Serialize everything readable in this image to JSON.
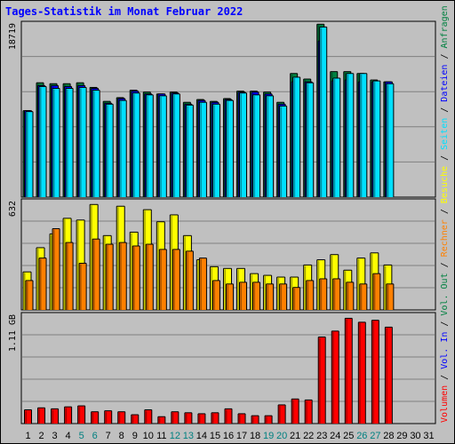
{
  "chart_title": "Tages-Statistik im Monat Februar 2022",
  "colors": {
    "background": "#c0c0c0",
    "title": "#0000ff",
    "anfragen": "#008040",
    "dateien": "#0000ff",
    "seiten": "#00e0ff",
    "besuche": "#ffff00",
    "rechner": "#ff8000",
    "vol_in": "#0000ff",
    "vol_out": "#008040",
    "volumen": "#ff0000",
    "weekend_tick": "#008080",
    "default_tick": "#000000"
  },
  "right_legend": [
    {
      "text": "Anfragen",
      "color_key": "anfragen"
    },
    {
      "text": "Dateien",
      "color_key": "dateien"
    },
    {
      "text": "Seiten",
      "color_key": "seiten"
    },
    {
      "text": "Besuche",
      "color_key": "besuche"
    },
    {
      "text": "Rechner",
      "color_key": "rechner"
    },
    {
      "text": "Vol. Out",
      "color_key": "vol_out"
    },
    {
      "text": "Vol. In",
      "color_key": "vol_in"
    },
    {
      "text": "Volumen",
      "color_key": "volumen"
    }
  ],
  "chart_data": [
    {
      "type": "bar",
      "title": "Tages-Statistik im Monat Februar 2022",
      "panel": "top",
      "ylabel": "18719",
      "ylim": [
        0,
        18719
      ],
      "categories": [
        "1",
        "2",
        "3",
        "4",
        "5",
        "6",
        "7",
        "8",
        "9",
        "10",
        "11",
        "12",
        "13",
        "14",
        "15",
        "16",
        "17",
        "18",
        "19",
        "20",
        "21",
        "22",
        "23",
        "24",
        "25",
        "26",
        "27",
        "28",
        "29",
        "30",
        "31"
      ],
      "series": [
        {
          "name": "Anfragen",
          "values": [
            9300,
            12300,
            12200,
            12200,
            12300,
            11800,
            10300,
            10700,
            11500,
            11300,
            11100,
            11300,
            10200,
            10500,
            10300,
            10600,
            11400,
            11400,
            11300,
            10200,
            13300,
            12700,
            18600,
            13500,
            13500,
            13300,
            12600,
            12400,
            null,
            null,
            null
          ]
        },
        {
          "name": "Dateien",
          "values": [
            9300,
            12000,
            12000,
            11900,
            12000,
            11700,
            10100,
            10600,
            11400,
            11100,
            11100,
            11200,
            10000,
            10400,
            10200,
            10500,
            11300,
            11300,
            11100,
            10000,
            12400,
            12400,
            16800,
            12500,
            12600,
            12400,
            12400,
            12400,
            null,
            null,
            null
          ]
        },
        {
          "name": "Seiten",
          "values": [
            9200,
            11900,
            11700,
            11700,
            11800,
            11500,
            10000,
            10400,
            11200,
            11000,
            10900,
            11100,
            9900,
            10200,
            10000,
            10400,
            11200,
            11000,
            10900,
            9800,
            12900,
            12300,
            18300,
            12800,
            13300,
            13300,
            12500,
            12200,
            null,
            null,
            null
          ]
        }
      ]
    },
    {
      "type": "bar",
      "panel": "middle",
      "ylabel": "632",
      "ylim": [
        0,
        632
      ],
      "categories": [
        "1",
        "2",
        "3",
        "4",
        "5",
        "6",
        "7",
        "8",
        "9",
        "10",
        "11",
        "12",
        "13",
        "14",
        "15",
        "16",
        "17",
        "18",
        "19",
        "20",
        "21",
        "22",
        "23",
        "24",
        "25",
        "26",
        "27",
        "28",
        "29",
        "30",
        "31"
      ],
      "series": [
        {
          "name": "Besuche",
          "values": [
            220,
            360,
            440,
            530,
            520,
            610,
            430,
            600,
            450,
            580,
            510,
            550,
            430,
            290,
            250,
            240,
            240,
            210,
            200,
            190,
            190,
            260,
            290,
            320,
            230,
            300,
            330,
            260,
            null,
            null,
            null
          ]
        },
        {
          "name": "Rechner",
          "values": [
            170,
            300,
            470,
            390,
            270,
            410,
            380,
            390,
            370,
            380,
            350,
            350,
            340,
            300,
            170,
            150,
            160,
            160,
            150,
            150,
            130,
            170,
            180,
            180,
            160,
            150,
            210,
            150,
            null,
            null,
            null
          ]
        }
      ]
    },
    {
      "type": "bar",
      "panel": "bottom",
      "ylabel": "1.11 GB",
      "categories": [
        "1",
        "2",
        "3",
        "4",
        "5",
        "6",
        "7",
        "8",
        "9",
        "10",
        "11",
        "12",
        "13",
        "14",
        "15",
        "16",
        "17",
        "18",
        "19",
        "20",
        "21",
        "22",
        "23",
        "24",
        "25",
        "26",
        "27",
        "28",
        "29",
        "30",
        "31"
      ],
      "x_weekend_days": [
        "5",
        "6",
        "12",
        "13",
        "19",
        "20",
        "26",
        "27"
      ],
      "series": [
        {
          "name": "Volumen",
          "unit": "GB",
          "values": [
            0.14,
            0.16,
            0.15,
            0.17,
            0.18,
            0.12,
            0.13,
            0.12,
            0.09,
            0.14,
            0.07,
            0.12,
            0.11,
            0.1,
            0.11,
            0.15,
            0.1,
            0.08,
            0.08,
            0.19,
            0.25,
            0.24,
            0.88,
            0.94,
            1.07,
            1.03,
            1.05,
            0.98,
            null,
            null,
            null
          ]
        }
      ]
    }
  ]
}
